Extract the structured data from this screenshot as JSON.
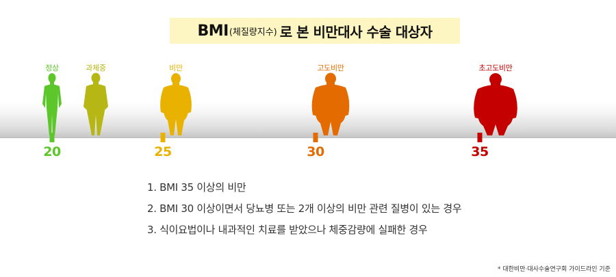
{
  "title": {
    "main": "BMI",
    "paren": "(체질량지수)",
    "rest": "로 본 비만대사 수술 대상자"
  },
  "categories": [
    {
      "label": "정상",
      "color": "#5cc62b",
      "icon": "slim-person-icon"
    },
    {
      "label": "과체중",
      "color": "#b6b714",
      "icon": "overweight-person-icon"
    },
    {
      "label": "비만",
      "color": "#e9b200",
      "icon": "obese-person-icon"
    },
    {
      "label": "고도비만",
      "color": "#e46b00",
      "icon": "severely-obese-person-icon"
    },
    {
      "label": "초고도비만",
      "color": "#c40000",
      "icon": "morbidly-obese-person-icon"
    }
  ],
  "scale": [
    {
      "value": "20",
      "color": "#5cc62b"
    },
    {
      "value": "25",
      "color": "#e9b200"
    },
    {
      "value": "30",
      "color": "#e46b00"
    },
    {
      "value": "35",
      "color": "#c40000"
    }
  ],
  "criteria": [
    "1. BMI 35 이상의 비만",
    "2. BMI 30 이상이면서 당뇨병 또는 2개 이상의 비만 관련 질병이 있는 경우",
    "3. 식이요법이나 내과적인 치료를 받았으나 체중감량에 실패한 경우"
  ],
  "source": "* 대한비만·대사수술연구회 가이드라인 기준"
}
